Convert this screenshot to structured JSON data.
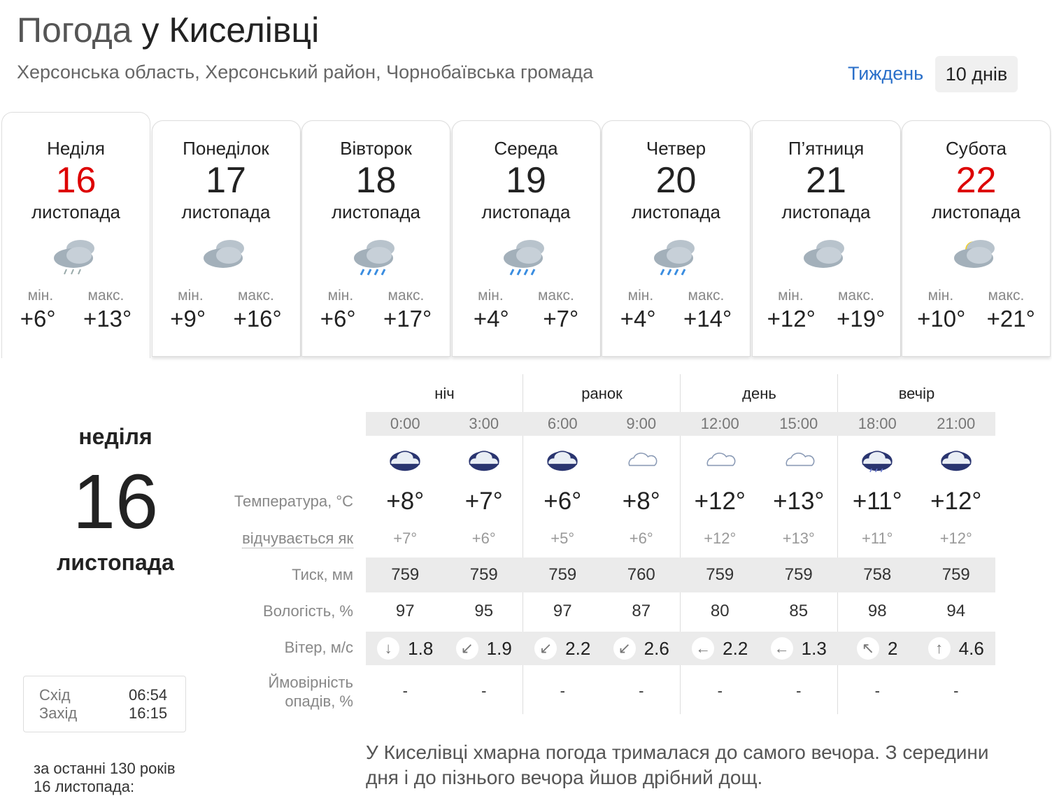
{
  "header": {
    "title_prefix": "Погода",
    "title_place": "у Киселівці",
    "subtitle": "Херсонська область, Херсонський район, Чорнобаївська громада",
    "week_link": "Тиждень",
    "tendays_button": "10 днів"
  },
  "days": [
    {
      "name": "Неділя",
      "num": "16",
      "month": "листопада",
      "weekend": true,
      "icon": "cloud-light-rain",
      "min_label": "мін.",
      "max_label": "макс.",
      "min": "+6°",
      "max": "+13°"
    },
    {
      "name": "Понеділок",
      "num": "17",
      "month": "листопада",
      "weekend": false,
      "icon": "overcast",
      "min_label": "мін.",
      "max_label": "макс.",
      "min": "+9°",
      "max": "+16°"
    },
    {
      "name": "Вівторок",
      "num": "18",
      "month": "листопада",
      "weekend": false,
      "icon": "cloud-rain",
      "min_label": "мін.",
      "max_label": "макс.",
      "min": "+6°",
      "max": "+17°"
    },
    {
      "name": "Середа",
      "num": "19",
      "month": "листопада",
      "weekend": false,
      "icon": "cloud-rain",
      "min_label": "мін.",
      "max_label": "макс.",
      "min": "+4°",
      "max": "+7°"
    },
    {
      "name": "Четвер",
      "num": "20",
      "month": "листопада",
      "weekend": false,
      "icon": "cloud-rain",
      "min_label": "мін.",
      "max_label": "макс.",
      "min": "+4°",
      "max": "+14°"
    },
    {
      "name": "П’ятниця",
      "num": "21",
      "month": "листопада",
      "weekend": false,
      "icon": "overcast",
      "min_label": "мін.",
      "max_label": "макс.",
      "min": "+12°",
      "max": "+19°"
    },
    {
      "name": "Субота",
      "num": "22",
      "month": "листопада",
      "weekend": true,
      "icon": "partly-cloudy",
      "min_label": "мін.",
      "max_label": "макс.",
      "min": "+10°",
      "max": "+21°"
    }
  ],
  "selected": {
    "weekday": "неділя",
    "num": "16",
    "month": "листопада",
    "sunrise_label": "Схід",
    "sunrise": "06:54",
    "sunset_label": "Захід",
    "sunset": "16:15",
    "history": "за останні 130 років",
    "history2": "16 листопада:"
  },
  "table": {
    "periods": [
      "ніч",
      "ранок",
      "день",
      "вечір"
    ],
    "times": [
      "0:00",
      "3:00",
      "6:00",
      "9:00",
      "12:00",
      "15:00",
      "18:00",
      "21:00"
    ],
    "icons": [
      "night-cloud",
      "night-cloud",
      "night-cloud",
      "cloud",
      "cloud",
      "cloud",
      "night-cloud-rain",
      "night-cloud"
    ],
    "labels": {
      "temp": "Температура, °C",
      "feels": "відчувається як",
      "pressure": "Тиск, мм",
      "humidity": "Вологість, %",
      "wind": "Вітер, м/с",
      "precip1": "Ймовірність",
      "precip2": "опадів, %"
    },
    "temp": [
      "+8°",
      "+7°",
      "+6°",
      "+8°",
      "+12°",
      "+13°",
      "+11°",
      "+12°"
    ],
    "feels": [
      "+7°",
      "+6°",
      "+5°",
      "+6°",
      "+12°",
      "+13°",
      "+11°",
      "+12°"
    ],
    "pressure": [
      "759",
      "759",
      "759",
      "760",
      "759",
      "759",
      "758",
      "759"
    ],
    "humidity": [
      "97",
      "95",
      "97",
      "87",
      "80",
      "85",
      "98",
      "94"
    ],
    "wind_dir": [
      "↓",
      "↙",
      "↙",
      "↙",
      "←",
      "←",
      "↖",
      "↑"
    ],
    "wind": [
      "1.8",
      "1.9",
      "2.2",
      "2.6",
      "2.2",
      "1.3",
      "2",
      "4.6"
    ],
    "precip": [
      "-",
      "-",
      "-",
      "-",
      "-",
      "-",
      "-",
      "-"
    ]
  },
  "description": "У Киселівці хмарна погода трималася до самого вечора. З середини дня і до пізнього вечора йшов дрібний дощ.",
  "colors": {
    "weekend": "#dd0000",
    "link": "#2a6fc9"
  }
}
